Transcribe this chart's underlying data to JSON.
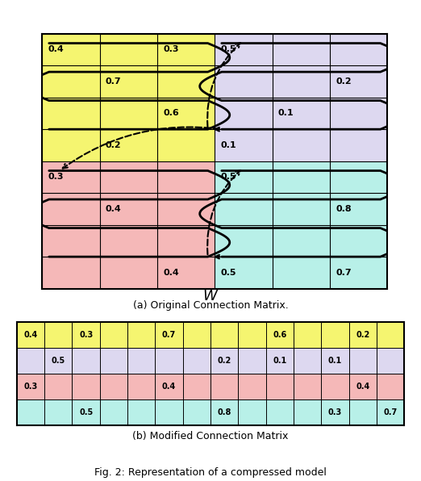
{
  "fig_width": 5.22,
  "fig_height": 5.96,
  "top_matrix": {
    "quadrant_colors": {
      "top_left": "#f5f570",
      "top_right": "#ddd8f0",
      "bottom_left": "#f5b8b8",
      "bottom_right": "#b8f0e8"
    },
    "grid_rows": 8,
    "grid_cols": 6,
    "labels": [
      {
        "text": "0.4",
        "row": 0,
        "col": 0
      },
      {
        "text": "0.3",
        "row": 0,
        "col": 2
      },
      {
        "text": "0.7",
        "row": 1,
        "col": 1
      },
      {
        "text": "0.6",
        "row": 2,
        "col": 2
      },
      {
        "text": "0.2",
        "row": 3,
        "col": 1
      },
      {
        "text": "0.5",
        "row": 0,
        "col": 3
      },
      {
        "text": "0.2",
        "row": 1,
        "col": 5
      },
      {
        "text": "0.1",
        "row": 2,
        "col": 4
      },
      {
        "text": "0.1",
        "row": 3,
        "col": 3
      },
      {
        "text": "0.3",
        "row": 4,
        "col": 0
      },
      {
        "text": "0.4",
        "row": 5,
        "col": 1
      },
      {
        "text": "0.4",
        "row": 7,
        "col": 2
      },
      {
        "text": "0.5",
        "row": 4,
        "col": 3
      },
      {
        "text": "0.8",
        "row": 5,
        "col": 5
      },
      {
        "text": "0.5",
        "row": 7,
        "col": 3
      },
      {
        "text": "0.7",
        "row": 7,
        "col": 5
      }
    ],
    "title": "(a) Original Connection Matrix.",
    "xlabel": "W"
  },
  "bottom_matrix": {
    "num_cols": 14,
    "num_rows": 4,
    "row_colors": [
      "#f5f570",
      "#ddd8f0",
      "#f5b8b8",
      "#b8f0e8"
    ],
    "cells": [
      {
        "row": 0,
        "col": 0,
        "val": "0.4"
      },
      {
        "row": 0,
        "col": 2,
        "val": "0.3"
      },
      {
        "row": 0,
        "col": 5,
        "val": "0.7"
      },
      {
        "row": 0,
        "col": 9,
        "val": "0.6"
      },
      {
        "row": 0,
        "col": 12,
        "val": "0.2"
      },
      {
        "row": 1,
        "col": 1,
        "val": "0.5"
      },
      {
        "row": 1,
        "col": 7,
        "val": "0.2"
      },
      {
        "row": 1,
        "col": 9,
        "val": "0.1"
      },
      {
        "row": 1,
        "col": 11,
        "val": "0.1"
      },
      {
        "row": 2,
        "col": 0,
        "val": "0.3"
      },
      {
        "row": 2,
        "col": 5,
        "val": "0.4"
      },
      {
        "row": 2,
        "col": 12,
        "val": "0.4"
      },
      {
        "row": 3,
        "col": 2,
        "val": "0.5"
      },
      {
        "row": 3,
        "col": 7,
        "val": "0.8"
      },
      {
        "row": 3,
        "col": 11,
        "val": "0.3"
      },
      {
        "row": 3,
        "col": 13,
        "val": "0.7"
      }
    ],
    "title": "(b) Modified Connection Matrix"
  },
  "bg_color": "#ffffff"
}
